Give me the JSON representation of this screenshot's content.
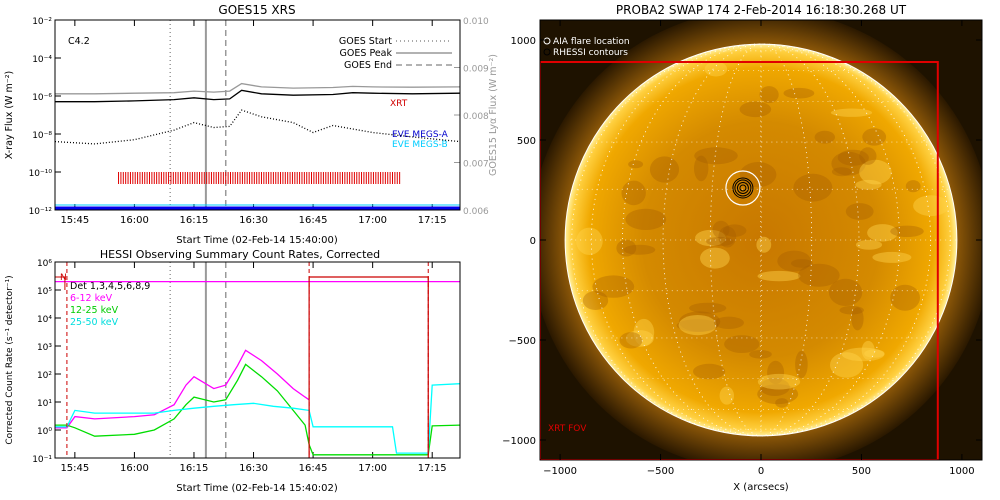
{
  "chart_data": [
    {
      "type": "line",
      "panel": "goes",
      "title": "GOES15 XRS",
      "xlabel": "Start Time (02-Feb-14 15:40:00)",
      "ylabel": "X-ray Flux (W m⁻²)",
      "y2label": "GOES15 Lyα Flux (W m⁻²)",
      "yscale": "log",
      "ylim": [
        1e-12,
        0.01
      ],
      "y2lim": [
        0.006,
        0.01
      ],
      "xlim": [
        "15:40",
        "17:22"
      ],
      "x_ticks": [
        "15:45",
        "16:00",
        "16:15",
        "16:30",
        "16:45",
        "17:00",
        "17:15"
      ],
      "y_ticks": [
        "10⁻¹²",
        "10⁻¹⁰",
        "10⁻⁸",
        "10⁻⁶",
        "10⁻⁴",
        "10⁻²"
      ],
      "y2_ticks": [
        "0.006",
        "0.007",
        "0.008",
        "0.009",
        "0.010"
      ],
      "class_label": "C4.2",
      "legend": [
        {
          "name": "GOES Start",
          "style": "dotted"
        },
        {
          "name": "GOES Peak",
          "style": "solid"
        },
        {
          "name": "GOES End",
          "style": "dashed"
        }
      ],
      "markers": {
        "start": "16:09",
        "peak": "16:18",
        "end": "16:23"
      },
      "labels": {
        "xrt": "XRT",
        "eve_a": "EVE MEGS-A",
        "eve_b": "EVE MEGS-B"
      },
      "xrt_interval": [
        "15:56",
        "17:07"
      ],
      "series": [
        {
          "color": "#999999",
          "x": [
            "15:40",
            "15:50",
            "16:00",
            "16:10",
            "16:15",
            "16:20",
            "16:24",
            "16:27",
            "16:32",
            "16:40",
            "16:50",
            "16:55",
            "17:00",
            "17:10",
            "17:22"
          ],
          "values": [
            1.3e-06,
            1.3e-06,
            1.4e-06,
            1.5e-06,
            1.8e-06,
            1.6e-06,
            1.8e-06,
            4.5e-06,
            3e-06,
            2.6e-06,
            2.8e-06,
            3.2e-06,
            3e-06,
            2.9e-06,
            3e-06
          ]
        },
        {
          "color": "#000000",
          "x": [
            "15:40",
            "15:50",
            "16:00",
            "16:10",
            "16:15",
            "16:20",
            "16:24",
            "16:27",
            "16:32",
            "16:40",
            "16:50",
            "16:55",
            "17:00",
            "17:10",
            "17:22"
          ],
          "values": [
            5e-07,
            5e-07,
            5.5e-07,
            6.5e-07,
            8e-07,
            6.5e-07,
            7e-07,
            2e-06,
            1.3e-06,
            1.1e-06,
            1.2e-06,
            1.5e-06,
            1.4e-06,
            1.3e-06,
            1.4e-06
          ]
        },
        {
          "color": "#000000",
          "style": "dotted",
          "x": [
            "15:40",
            "15:50",
            "16:00",
            "16:10",
            "16:15",
            "16:20",
            "16:24",
            "16:27",
            "16:32",
            "16:40",
            "16:45",
            "16:50",
            "17:00",
            "17:10",
            "17:22"
          ],
          "values": [
            4e-09,
            3e-09,
            5e-09,
            1.6e-08,
            4e-08,
            2.2e-08,
            2.5e-08,
            1.8e-07,
            8e-08,
            4e-08,
            1.2e-08,
            2.8e-08,
            1.2e-08,
            7e-09,
            4e-09
          ]
        }
      ]
    },
    {
      "type": "line",
      "panel": "hessi",
      "title": "HESSI Observing Summary Count Rates, Corrected",
      "xlabel": "Start Time (02-Feb-14 15:40:02)",
      "ylabel": "Corrected Count Rate (s⁻¹ detector⁻¹)",
      "yscale": "log",
      "ylim": [
        0.1,
        1000000.0
      ],
      "xlim": [
        "15:40",
        "17:22"
      ],
      "x_ticks": [
        "15:45",
        "16:00",
        "16:15",
        "16:30",
        "16:45",
        "17:00",
        "17:15"
      ],
      "y_ticks": [
        "10⁻¹",
        "10⁰",
        "10¹",
        "10²",
        "10³",
        "10⁴",
        "10⁵",
        "10⁶"
      ],
      "det_label": "Det 1,3,4,5,6,8,9",
      "n_label": "N",
      "markers": {
        "start": "16:09",
        "peak": "16:18",
        "end": "16:23"
      },
      "night_marks": [
        "15:43",
        "16:44",
        "17:14"
      ],
      "series": [
        {
          "name": "6-12 keV",
          "color": "#ff00ff",
          "x": [
            "15:40",
            "15:43",
            "15:45",
            "15:50",
            "16:00",
            "16:05",
            "16:10",
            "16:13",
            "16:15",
            "16:20",
            "16:23",
            "16:26",
            "16:28",
            "16:32",
            "16:36",
            "16:40",
            "16:43",
            "16:44"
          ],
          "values": [
            1.2,
            1.2,
            3,
            2.5,
            3,
            3.5,
            8,
            40,
            80,
            30,
            40,
            200,
            700,
            300,
            100,
            30,
            15,
            12
          ]
        },
        {
          "name": "12-25 keV",
          "color": "#00dd00",
          "x": [
            "15:40",
            "15:43",
            "15:45",
            "15:50",
            "16:00",
            "16:05",
            "16:10",
            "16:13",
            "16:15",
            "16:20",
            "16:23",
            "16:26",
            "16:28",
            "16:32",
            "16:36",
            "16:40",
            "16:43",
            "16:44",
            "16:45",
            "17:14",
            "17:15",
            "17:22"
          ],
          "values": [
            1.5,
            1.5,
            1.2,
            0.6,
            0.7,
            1.0,
            2.5,
            8,
            15,
            10,
            12,
            60,
            220,
            80,
            25,
            5,
            1.5,
            0.3,
            0.13,
            0.13,
            1.4,
            1.5
          ]
        },
        {
          "name": "25-50 keV",
          "color": "#00ffff",
          "x": [
            "15:40",
            "15:43",
            "15:45",
            "15:50",
            "16:00",
            "16:05",
            "16:10",
            "16:15",
            "16:20",
            "16:25",
            "16:30",
            "16:35",
            "16:40",
            "16:44",
            "16:45",
            "17:05",
            "17:06",
            "17:14",
            "17:15",
            "17:22"
          ],
          "values": [
            1.3,
            1.3,
            5,
            4,
            4,
            4,
            5,
            6,
            7,
            8,
            9,
            7,
            6,
            5,
            1.3,
            1.3,
            0.15,
            0.15,
            40,
            45
          ]
        },
        {
          "name": "attenuator",
          "color": "#ff00ff",
          "x": [
            "15:40",
            "17:22"
          ],
          "values": [
            200000.0,
            200000.0
          ]
        }
      ]
    },
    {
      "type": "heatmap",
      "panel": "swap",
      "title": "PROBA2 SWAP 174   2-Feb-2014 16:18:30.268 UT",
      "xlabel": "X (arcsecs)",
      "ylabel": "",
      "xlim": [
        -1100,
        1100
      ],
      "ylim": [
        -1100,
        1100
      ],
      "x_ticks": [
        "−1000",
        "−500",
        "0",
        "500",
        "1000"
      ],
      "y_ticks": [
        "−1000",
        "−500",
        "0",
        "500",
        "1000"
      ],
      "legend": [
        {
          "name": "AIA flare location",
          "color": "#ffffff"
        },
        {
          "name": "RHESSI contours",
          "color": "#000000"
        }
      ],
      "fov_label": "XRT FOV",
      "flare_location": [
        -90,
        260
      ],
      "solar_radius": 975,
      "xrt_fov": {
        "x": [
          -1100,
          880
        ],
        "y": [
          -1100,
          890
        ]
      }
    }
  ]
}
